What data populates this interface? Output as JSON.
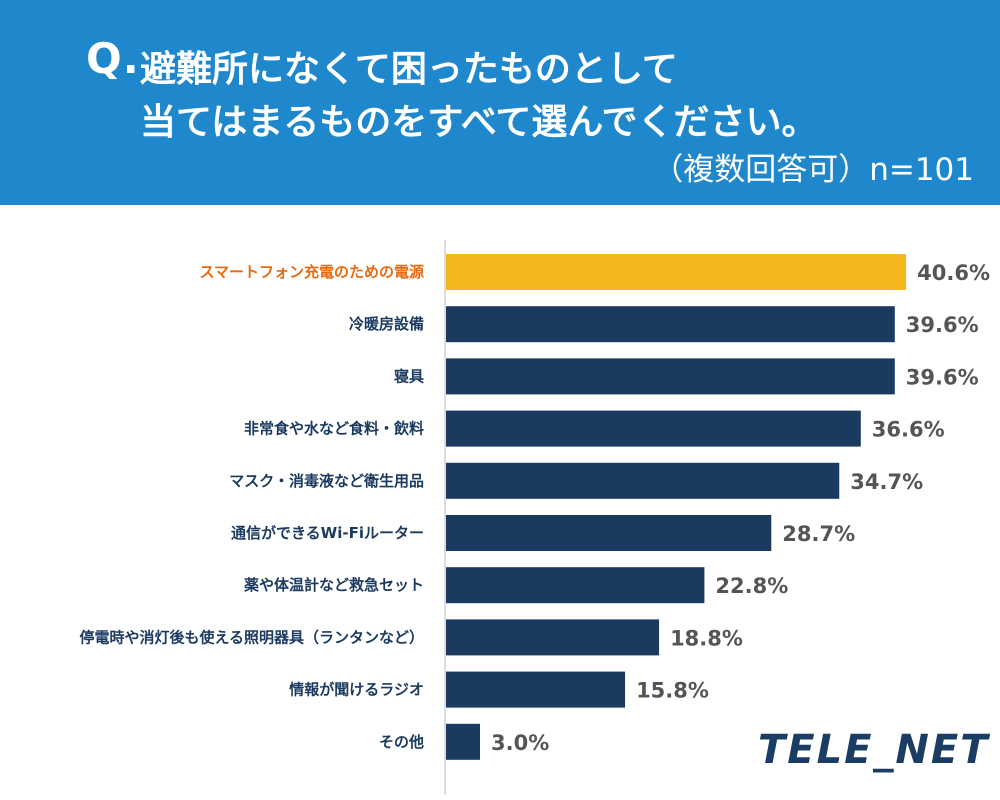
{
  "header": {
    "q_label": "Q.",
    "title_line1": "避難所になくて困ったものとして",
    "title_line2": "当てはまるものをすべて選んでください。",
    "note": "（複数回答可）n=101"
  },
  "logo": "TELE_NET",
  "colors": {
    "header_bg": "#1f88cc",
    "bar_default": "#1b3a5f",
    "bar_highlight": "#f3b81e",
    "label_default": "#1b3a5f",
    "label_highlight": "#e86a10",
    "value_text": "#555555",
    "axis": "#bbbbbb"
  },
  "chart_data": {
    "type": "bar",
    "orientation": "horizontal",
    "title": "避難所になくて困ったものとして当てはまるものをすべて選んでください。",
    "unit": "%",
    "xlim": [
      0,
      45
    ],
    "highlight_index": 0,
    "categories": [
      "スマートフォン充電のための電源",
      "冷暖房設備",
      "寝具",
      "非常食や水など食料・飲料",
      "マスク・消毒液など衛生用品",
      "通信ができるWi-Fiルーター",
      "薬や体温計など救急セット",
      "停電時や消灯後も使える照明器具（ランタンなど）",
      "情報が聞けるラジオ",
      "その他"
    ],
    "values": [
      40.6,
      39.6,
      39.6,
      36.6,
      34.7,
      28.7,
      22.8,
      18.8,
      15.8,
      3.0
    ],
    "value_labels": [
      "40.6%",
      "39.6%",
      "39.6%",
      "36.6%",
      "34.7%",
      "28.7%",
      "22.8%",
      "18.8%",
      "15.8%",
      "3.0%"
    ]
  }
}
